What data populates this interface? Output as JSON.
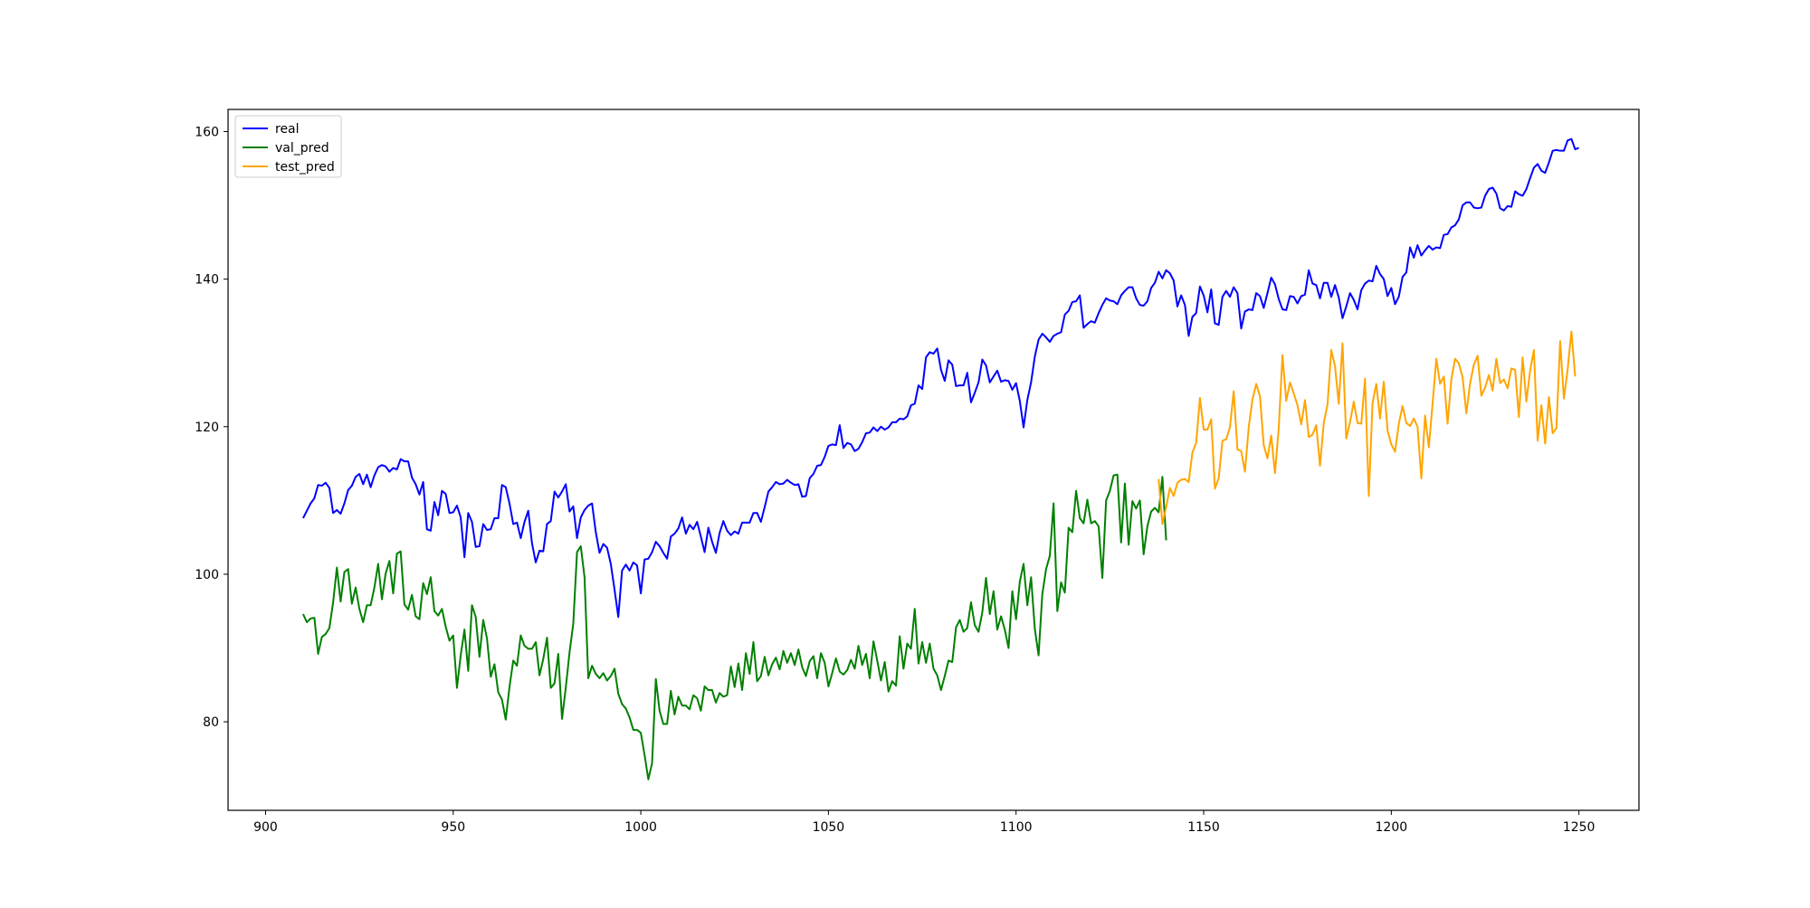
{
  "chart_data": {
    "type": "line",
    "title": "",
    "xlabel": "",
    "ylabel": "",
    "xlim": [
      890,
      1266
    ],
    "ylim": [
      68,
      163
    ],
    "xticks": [
      900,
      950,
      1000,
      1050,
      1100,
      1150,
      1200,
      1250
    ],
    "yticks": [
      80,
      100,
      120,
      140,
      160
    ],
    "grid": false,
    "legend_position": "top-left",
    "series": [
      {
        "name": "real",
        "color": "#0000ff",
        "x_start": 910,
        "values": [
          107.6,
          108.6,
          109.6,
          110.3,
          112.1,
          112.0,
          112.4,
          111.7,
          108.3,
          108.7,
          108.2,
          109.6,
          111.4,
          112.0,
          113.2,
          113.6,
          112.2,
          113.5,
          111.8,
          113.4,
          114.5,
          114.8,
          114.6,
          113.9,
          114.4,
          114.2,
          115.6,
          115.3,
          115.3,
          113.1,
          112.2,
          110.8,
          112.5,
          106.1,
          105.9,
          109.8,
          108.0,
          111.3,
          110.9,
          108.3,
          108.4,
          109.3,
          107.7,
          102.3,
          108.3,
          107.1,
          103.7,
          103.8,
          106.8,
          106.0,
          106.1,
          107.6,
          107.6,
          112.1,
          111.8,
          109.6,
          106.8,
          107.0,
          104.9,
          107.1,
          108.6,
          104.2,
          101.6,
          103.2,
          103.1,
          106.8,
          107.2,
          111.2,
          110.4,
          111.2,
          112.2,
          108.5,
          109.2,
          104.9,
          107.7,
          108.7,
          109.3,
          109.6,
          105.7,
          102.9,
          104.1,
          103.6,
          101.4,
          97.9,
          94.2,
          100.5,
          101.3,
          100.5,
          101.6,
          101.2,
          97.4,
          102.0,
          102.1,
          103.0,
          104.4,
          103.8,
          102.9,
          102.1,
          105.1,
          105.5,
          106.2,
          107.7,
          105.5,
          106.7,
          106.1,
          107.1,
          105.1,
          103.0,
          106.3,
          104.4,
          102.9,
          105.6,
          107.2,
          105.9,
          105.3,
          105.8,
          105.5,
          107.0,
          107.0,
          107.0,
          108.3,
          108.3,
          107.1,
          109.1,
          111.2,
          111.8,
          112.5,
          112.2,
          112.3,
          112.8,
          112.4,
          112.1,
          112.2,
          110.5,
          110.6,
          113.0,
          113.6,
          114.7,
          114.8,
          115.9,
          117.4,
          117.6,
          117.5,
          120.2,
          117.1,
          117.8,
          117.6,
          116.7,
          117.0,
          117.9,
          119.1,
          119.2,
          119.9,
          119.4,
          120.0,
          119.6,
          119.9,
          120.6,
          120.6,
          121.1,
          121.0,
          121.4,
          122.9,
          123.1,
          125.6,
          125.1,
          129.4,
          130.1,
          129.9,
          130.6,
          127.7,
          126.2,
          129.0,
          128.4,
          125.5,
          125.6,
          125.6,
          127.3,
          123.3,
          124.6,
          126.0,
          129.1,
          128.3,
          126.0,
          126.8,
          127.6,
          126.1,
          126.3,
          126.2,
          125.0,
          125.9,
          123.5,
          119.9,
          123.6,
          126.0,
          129.5,
          131.8,
          132.6,
          132.1,
          131.5,
          132.3,
          132.6,
          132.8,
          135.2,
          135.7,
          136.9,
          137.0,
          137.8,
          133.4,
          133.9,
          134.3,
          134.1,
          135.4,
          136.5,
          137.4,
          137.1,
          137.0,
          136.6,
          137.8,
          138.4,
          138.9,
          138.9,
          137.4,
          136.5,
          136.4,
          137.0,
          138.8,
          139.5,
          141.0,
          140.1,
          141.2,
          140.8,
          139.8,
          136.3,
          137.8,
          136.5,
          132.3,
          134.9,
          135.4,
          139.0,
          137.8,
          135.5,
          138.6,
          134.0,
          133.8,
          137.6,
          138.4,
          137.6,
          138.9,
          138.1,
          133.3,
          135.6,
          135.9,
          135.8,
          138.1,
          137.7,
          136.1,
          138.1,
          140.2,
          139.3,
          137.3,
          135.9,
          135.8,
          137.7,
          137.6,
          136.7,
          137.7,
          137.9,
          141.2,
          139.4,
          139.2,
          137.4,
          139.5,
          139.5,
          137.6,
          139.2,
          137.5,
          134.7,
          136.3,
          138.1,
          137.2,
          135.9,
          138.5,
          139.4,
          139.8,
          139.7,
          141.8,
          140.7,
          140.0,
          137.7,
          138.8,
          136.6,
          137.6,
          140.3,
          140.9,
          144.3,
          142.9,
          144.6,
          143.2,
          143.9,
          144.5,
          144.0,
          144.3,
          144.2,
          146.0,
          146.1,
          147.0,
          147.3,
          148.1,
          150.0,
          150.4,
          150.4,
          149.7,
          149.6,
          149.7,
          151.3,
          152.2,
          152.4,
          151.6,
          149.6,
          149.3,
          149.9,
          149.8,
          151.9,
          151.5,
          151.3,
          152.2,
          153.7,
          155.1,
          155.6,
          154.7,
          154.4,
          155.8,
          157.4,
          157.5,
          157.4,
          157.4,
          158.8,
          159.0,
          157.6,
          157.8
        ]
      },
      {
        "name": "val_pred",
        "color": "#008000",
        "x_start": 910,
        "values": [
          94.6,
          93.5,
          94.0,
          94.1,
          89.2,
          91.5,
          91.9,
          92.7,
          96.2,
          100.9,
          96.3,
          100.3,
          100.7,
          96.0,
          98.2,
          95.3,
          93.5,
          95.8,
          95.8,
          98.2,
          101.4,
          96.6,
          100.1,
          101.8,
          97.4,
          102.8,
          103.1,
          95.9,
          95.2,
          97.2,
          94.3,
          93.9,
          98.8,
          97.3,
          99.6,
          95.0,
          94.4,
          95.3,
          92.9,
          91.0,
          91.7,
          84.6,
          89.0,
          92.5,
          86.9,
          95.8,
          94.2,
          88.8,
          93.8,
          91.3,
          86.1,
          87.8,
          84.0,
          83.0,
          80.3,
          84.7,
          88.3,
          87.6,
          91.7,
          90.3,
          89.9,
          89.9,
          90.8,
          86.3,
          88.5,
          91.4,
          84.6,
          85.2,
          89.2,
          80.4,
          84.6,
          89.4,
          93.3,
          103.0,
          103.8,
          99.6,
          85.9,
          87.6,
          86.5,
          85.9,
          86.6,
          85.6,
          86.2,
          87.2,
          83.8,
          82.4,
          81.8,
          80.6,
          78.9,
          78.9,
          78.5,
          75.5,
          72.2,
          74.4,
          85.8,
          81.5,
          79.7,
          79.7,
          84.2,
          81.0,
          83.4,
          82.2,
          82.2,
          81.7,
          83.6,
          83.2,
          81.5,
          84.8,
          84.3,
          84.3,
          82.6,
          83.9,
          83.4,
          83.6,
          87.5,
          84.7,
          87.9,
          84.3,
          89.3,
          86.5,
          90.8,
          85.5,
          86.2,
          88.8,
          86.3,
          87.8,
          88.7,
          87.1,
          89.6,
          88.0,
          89.3,
          87.7,
          89.8,
          87.4,
          86.2,
          88.2,
          88.9,
          85.9,
          89.3,
          88.0,
          84.8,
          86.6,
          88.6,
          86.8,
          86.4,
          87.0,
          88.4,
          87.2,
          90.3,
          87.7,
          89.2,
          85.9,
          90.9,
          88.3,
          85.6,
          88.1,
          84.1,
          85.5,
          84.9,
          91.6,
          87.2,
          90.6,
          89.9,
          95.3,
          87.9,
          90.8,
          88.0,
          90.6,
          87.2,
          86.3,
          84.3,
          86.2,
          88.3,
          88.1,
          92.8,
          93.8,
          92.2,
          92.7,
          96.2,
          93.1,
          92.2,
          94.8,
          99.5,
          94.6,
          97.7,
          92.5,
          94.3,
          92.5,
          90.0,
          97.7,
          93.9,
          99.0,
          101.4,
          95.8,
          99.6,
          92.6,
          89.0,
          97.3,
          100.7,
          102.5,
          109.6,
          95.0,
          98.9,
          97.5,
          106.3,
          105.7,
          111.3,
          107.6,
          106.9,
          110.1,
          106.9,
          107.2,
          106.5,
          99.5,
          110.0,
          111.3,
          113.4,
          113.5,
          104.3,
          112.3,
          104.0,
          109.9,
          108.9,
          110.0,
          102.7,
          106.5,
          108.5,
          109.0,
          108.4,
          113.2,
          104.6
        ]
      },
      {
        "name": "test_pred",
        "color": "#ffa500",
        "x_start": 1138,
        "values": [
          112.9,
          106.8,
          109.1,
          111.7,
          110.6,
          112.4,
          112.8,
          112.9,
          112.5,
          116.5,
          117.8,
          123.9,
          119.6,
          119.6,
          121.0,
          111.6,
          113.0,
          118.1,
          118.3,
          119.9,
          124.8,
          116.9,
          116.7,
          113.9,
          119.9,
          123.7,
          125.8,
          124.1,
          117.5,
          115.7,
          118.8,
          113.7,
          119.8,
          129.7,
          123.5,
          126.0,
          124.5,
          122.9,
          120.3,
          123.6,
          118.6,
          118.9,
          120.2,
          114.7,
          120.5,
          123.0,
          130.4,
          128.2,
          123.1,
          131.3,
          118.4,
          120.6,
          123.4,
          120.5,
          120.4,
          126.5,
          110.6,
          123.2,
          125.8,
          121.1,
          126.1,
          119.5,
          117.6,
          116.6,
          120.4,
          122.8,
          120.5,
          120.1,
          121.1,
          120.0,
          113.0,
          121.5,
          117.2,
          123.1,
          129.2,
          125.8,
          126.8,
          120.4,
          126.4,
          129.2,
          128.6,
          126.7,
          121.8,
          125.9,
          128.4,
          129.6,
          124.2,
          125.3,
          127.0,
          124.9,
          129.2,
          125.9,
          126.4,
          125.2,
          127.9,
          127.7,
          121.3,
          129.4,
          123.4,
          127.6,
          130.4,
          118.1,
          122.9,
          117.7,
          124.0,
          119.1,
          119.8,
          131.6,
          123.8,
          127.8,
          132.9,
          126.8
        ]
      }
    ]
  }
}
